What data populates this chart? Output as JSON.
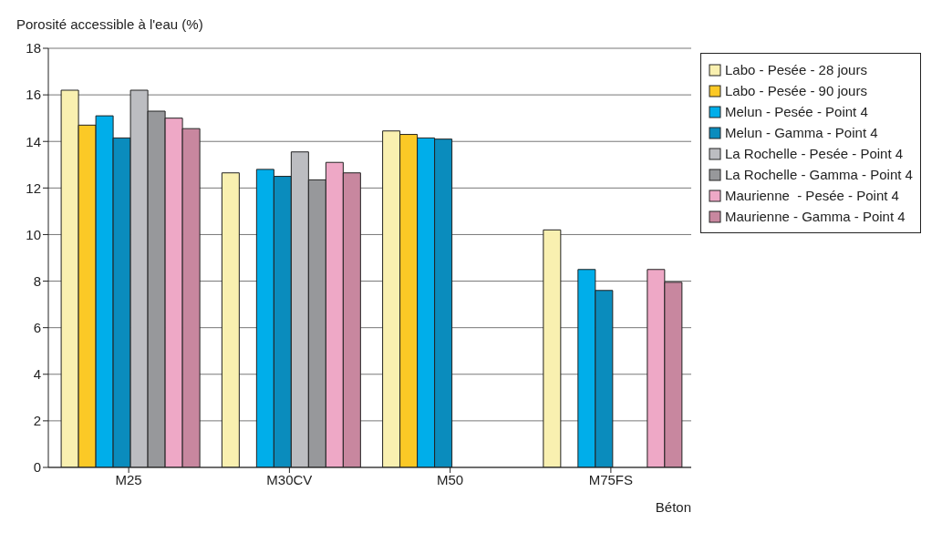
{
  "chart_data": {
    "type": "bar",
    "ylabel": "Porosité accessible à l'eau (%)",
    "xlabel": "Béton",
    "categories": [
      "M25",
      "M30CV",
      "M50",
      "M75FS"
    ],
    "series": [
      {
        "name": "Labo - Pesée - 28 jours",
        "color": "#f9f0b0",
        "values": [
          16.2,
          12.65,
          14.45,
          10.2
        ]
      },
      {
        "name": "Labo - Pesée - 90 jours",
        "color": "#fbc926",
        "values": [
          14.7,
          null,
          14.3,
          null
        ]
      },
      {
        "name": "Melun - Pesée - Point 4",
        "color": "#00aeea",
        "values": [
          15.1,
          12.8,
          14.15,
          8.5
        ]
      },
      {
        "name": "Melun - Gamma - Point 4",
        "color": "#0a8cbd",
        "values": [
          14.15,
          12.5,
          14.1,
          7.6
        ]
      },
      {
        "name": "La Rochelle - Pesée - Point 4",
        "color": "#bcbdc1",
        "values": [
          16.2,
          13.55,
          null,
          null
        ]
      },
      {
        "name": "La Rochelle - Gamma - Point 4",
        "color": "#97989b",
        "values": [
          15.3,
          12.35,
          null,
          null
        ]
      },
      {
        "name": "Maurienne  - Pesée - Point 4",
        "color": "#eea8c6",
        "values": [
          15.0,
          13.1,
          null,
          8.5
        ]
      },
      {
        "name": "Maurienne - Gamma - Point 4",
        "color": "#c8879f",
        "values": [
          14.55,
          12.65,
          null,
          7.95
        ]
      }
    ],
    "ylim": [
      0,
      18
    ],
    "yticks": [
      0,
      2,
      4,
      6,
      8,
      10,
      12,
      14,
      16,
      18
    ],
    "grid": "y",
    "legend": "right"
  }
}
